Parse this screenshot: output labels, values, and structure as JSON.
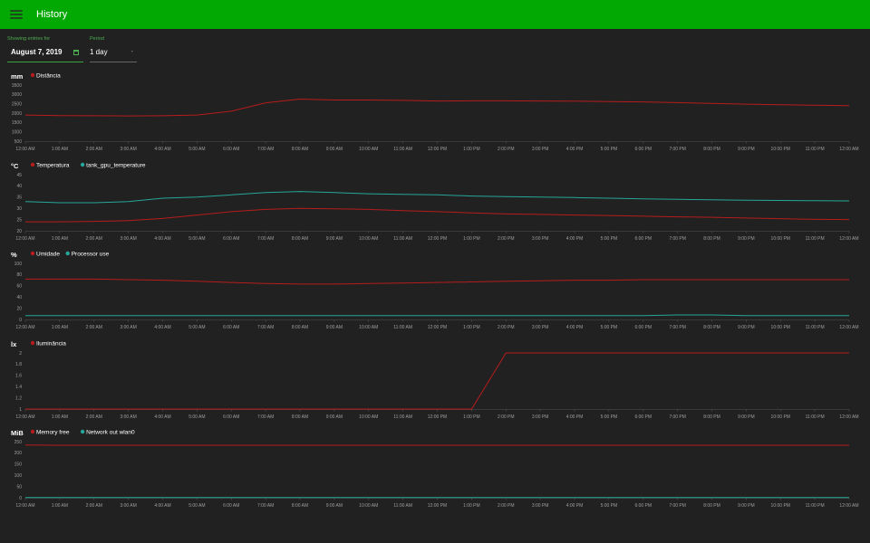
{
  "app": {
    "title": "History"
  },
  "controls": {
    "date_label": "Showing entries for",
    "date_value": "August 7, 2019",
    "period_label": "Period",
    "period_value": "1 day"
  },
  "time_labels": [
    "12:00 AM",
    "1:00 AM",
    "2:00 AM",
    "3:00 AM",
    "4:00 AM",
    "5:00 AM",
    "6:00 AM",
    "7:00 AM",
    "8:00 AM",
    "9:00 AM",
    "10:00 AM",
    "11:00 AM",
    "12:00 PM",
    "1:00 PM",
    "2:00 PM",
    "3:00 PM",
    "4:00 PM",
    "5:00 PM",
    "6:00 PM",
    "7:00 PM",
    "8:00 PM",
    "9:00 PM",
    "10:00 PM",
    "11:00 PM",
    "12:00 AM"
  ],
  "colors": {
    "series_red": "#b71c1c",
    "series_teal": "#26a69a",
    "topbar": "#03a903",
    "background": "#212121"
  },
  "chart_data": [
    {
      "type": "line",
      "unit": "mm",
      "ylim": [
        500,
        3500
      ],
      "yticks": [
        500,
        1000,
        1500,
        2000,
        2500,
        3000,
        3500
      ],
      "x": [
        0,
        1,
        2,
        3,
        4,
        5,
        6,
        7,
        8,
        9,
        10,
        11,
        12,
        13,
        14,
        15,
        16,
        17,
        18,
        19,
        20,
        21,
        22,
        23,
        24
      ],
      "series": [
        {
          "name": "Distância",
          "color": "#b71c1c",
          "values": [
            1900,
            1870,
            1860,
            1850,
            1860,
            1900,
            2100,
            2550,
            2750,
            2700,
            2700,
            2680,
            2650,
            2660,
            2660,
            2650,
            2640,
            2620,
            2600,
            2560,
            2520,
            2480,
            2450,
            2420,
            2400
          ]
        }
      ]
    },
    {
      "type": "line",
      "unit": "°C",
      "ylim": [
        20,
        45
      ],
      "yticks": [
        20,
        25,
        30,
        35,
        40,
        45
      ],
      "x": [
        0,
        1,
        2,
        3,
        4,
        5,
        6,
        7,
        8,
        9,
        10,
        11,
        12,
        13,
        14,
        15,
        16,
        17,
        18,
        19,
        20,
        21,
        22,
        23,
        24
      ],
      "series": [
        {
          "name": "Temperatura",
          "color": "#b71c1c",
          "values": [
            24,
            24,
            24.2,
            24.5,
            25.5,
            27,
            28.5,
            29.5,
            30,
            29.8,
            29.5,
            29,
            28.5,
            28,
            27.5,
            27.3,
            27,
            26.8,
            26.5,
            26.2,
            26,
            25.7,
            25.4,
            25.1,
            25
          ]
        },
        {
          "name": "tank_gpu_temperature",
          "color": "#26a69a",
          "values": [
            33,
            32.5,
            32.5,
            33,
            34.5,
            35,
            36,
            37,
            37.5,
            37,
            36.5,
            36.2,
            36,
            35.5,
            35.2,
            35,
            34.8,
            34.5,
            34.2,
            34,
            33.8,
            33.6,
            33.5,
            33.4,
            33.3
          ]
        }
      ]
    },
    {
      "type": "line",
      "unit": "%",
      "ylim": [
        0,
        100
      ],
      "yticks": [
        0,
        20,
        40,
        60,
        80,
        100
      ],
      "x": [
        0,
        1,
        2,
        3,
        4,
        5,
        6,
        7,
        8,
        9,
        10,
        11,
        12,
        13,
        14,
        15,
        16,
        17,
        18,
        19,
        20,
        21,
        22,
        23,
        24
      ],
      "series": [
        {
          "name": "Umidade",
          "color": "#b71c1c",
          "values": [
            72,
            72,
            72,
            71,
            70,
            68,
            66,
            64,
            63,
            63,
            64,
            65,
            66,
            67,
            68,
            69,
            70,
            70,
            71,
            71,
            71,
            71,
            71,
            71,
            71
          ]
        },
        {
          "name": "Processor use",
          "color": "#26a69a",
          "values": [
            7,
            7,
            7,
            7,
            7,
            7,
            7,
            7,
            7,
            7,
            7,
            7,
            7,
            7,
            7,
            7,
            7,
            7,
            7,
            8,
            8,
            7,
            7,
            7,
            7
          ]
        }
      ]
    },
    {
      "type": "line",
      "unit": "lx",
      "ylim": [
        1.0,
        2.0
      ],
      "yticks": [
        1.0,
        1.2,
        1.4,
        1.6,
        1.8,
        2.0
      ],
      "x": [
        0,
        1,
        2,
        3,
        4,
        5,
        6,
        7,
        8,
        9,
        10,
        11,
        12,
        13,
        14,
        15,
        16,
        17,
        18,
        19,
        20,
        21,
        22,
        23,
        24
      ],
      "series": [
        {
          "name": "Iluminância",
          "color": "#b71c1c",
          "values": [
            1.0,
            1.0,
            1.0,
            1.0,
            1.0,
            1.0,
            1.0,
            1.0,
            1.0,
            1.0,
            1.0,
            1.0,
            1.0,
            1.0,
            2.0,
            2.0,
            2.0,
            2.0,
            2.0,
            2.0,
            2.0,
            2.0,
            2.0,
            2.0,
            2.0
          ]
        }
      ]
    },
    {
      "type": "line",
      "unit": "MiB",
      "ylim": [
        0,
        250
      ],
      "yticks": [
        0,
        50,
        100,
        150,
        200,
        250
      ],
      "x": [
        0,
        1,
        2,
        3,
        4,
        5,
        6,
        7,
        8,
        9,
        10,
        11,
        12,
        13,
        14,
        15,
        16,
        17,
        18,
        19,
        20,
        21,
        22,
        23,
        24
      ],
      "series": [
        {
          "name": "Memory free",
          "color": "#b71c1c",
          "values": [
            235,
            234,
            234,
            234,
            234,
            234,
            234,
            234,
            234,
            234,
            234,
            234,
            234,
            234,
            234,
            234,
            234,
            234,
            234,
            234,
            234,
            234,
            234,
            234,
            234
          ]
        },
        {
          "name": "Network out wlan0",
          "color": "#26a69a",
          "values": [
            1,
            1,
            1,
            1,
            1,
            1,
            1,
            1,
            1,
            1,
            1,
            1,
            1,
            1,
            1,
            1,
            1,
            1,
            1,
            1,
            1,
            1,
            1,
            1,
            1
          ]
        }
      ]
    }
  ]
}
